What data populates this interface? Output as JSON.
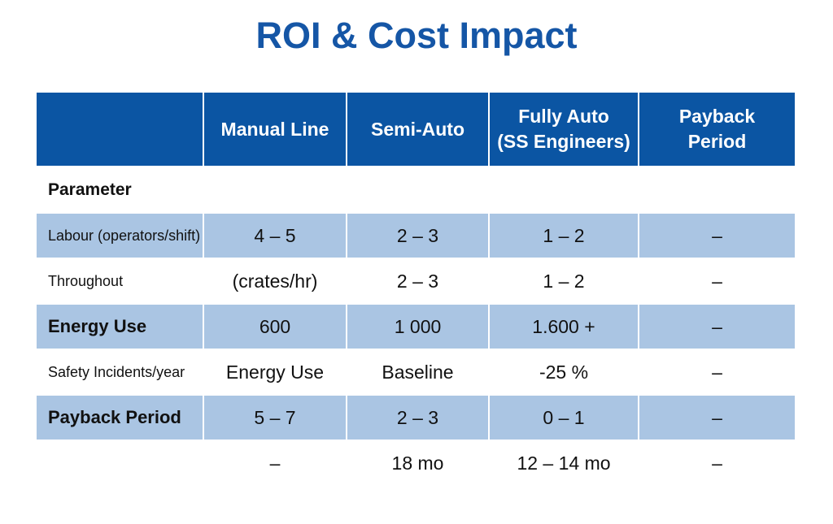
{
  "title": "ROI & Cost Impact",
  "table": {
    "headers": [
      "",
      "Manual Line",
      "Semi-Auto",
      "Fully Auto\n(SS Engineers)",
      "Payback\nPeriod"
    ],
    "section_label": "Parameter",
    "rows": [
      {
        "cells": [
          "Labour (operators/shift)",
          "4 – 5",
          "2 – 3",
          "1 – 2",
          "–"
        ],
        "shaded": true,
        "bold": false
      },
      {
        "cells": [
          "Throughout",
          "(crates/hr)",
          "2 – 3",
          "1 – 2",
          "–"
        ],
        "shaded": false,
        "bold": false
      },
      {
        "cells": [
          "Energy Use",
          "600",
          "1 000",
          "1.600 +",
          "–"
        ],
        "shaded": true,
        "bold": true
      },
      {
        "cells": [
          "Safety Incidents/year",
          "Energy Use",
          "Baseline",
          "-25 %",
          "–"
        ],
        "shaded": false,
        "bold": false
      },
      {
        "cells": [
          "Payback Period",
          "5 – 7",
          "2 – 3",
          "0 – 1",
          "–"
        ],
        "shaded": true,
        "bold": true
      },
      {
        "cells": [
          "",
          "–",
          "18 mo",
          "12 – 14 mo",
          "–"
        ],
        "shaded": false,
        "bold": false
      }
    ]
  },
  "colors": {
    "title": "#1556a6",
    "header_bg": "#0b55a3",
    "shaded_row": "#aac5e3"
  }
}
